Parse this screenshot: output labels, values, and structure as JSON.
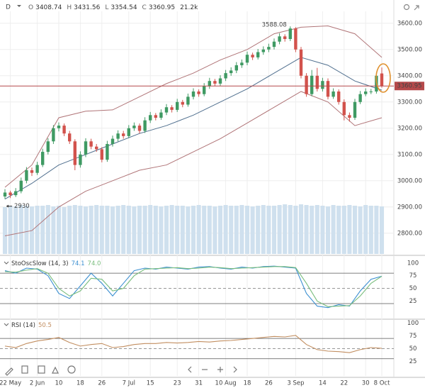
{
  "chart_data": [
    {
      "type": "candlestick",
      "header": {
        "interval": "D",
        "labels": [
          "O",
          "H",
          "L",
          "C"
        ],
        "values": [
          3408.74,
          3431.56,
          3354.54,
          3360.95
        ],
        "volume": {
          "value": 21200,
          "label": "21.2k"
        }
      },
      "categories": [
        null,
        "22 May",
        null,
        null,
        null,
        null,
        "2 Jun",
        null,
        null,
        null,
        "10",
        null,
        null,
        null,
        "18",
        null,
        null,
        null,
        "26",
        null,
        null,
        null,
        null,
        "7 Jul",
        null,
        null,
        null,
        "15",
        null,
        null,
        null,
        null,
        "23",
        null,
        null,
        null,
        "31",
        null,
        null,
        null,
        null,
        "10 Aug",
        null,
        null,
        null,
        "18",
        null,
        null,
        null,
        "26",
        null,
        null,
        null,
        null,
        "3 Sep",
        null,
        null,
        null,
        null,
        "14",
        null,
        null,
        null,
        "22",
        null,
        null,
        null,
        "30",
        null,
        null,
        "8 Oct"
      ],
      "open": [
        2940,
        2955,
        2945,
        2960,
        3000,
        3040,
        3030,
        3060,
        3110,
        3150,
        3200,
        3210,
        3180,
        3150,
        3060,
        3100,
        3150,
        3130,
        3120,
        3080,
        3140,
        3160,
        3180,
        3170,
        3200,
        3210,
        3190,
        3230,
        3250,
        3240,
        3260,
        3280,
        3270,
        3300,
        3290,
        3320,
        3340,
        3330,
        3360,
        3380,
        3370,
        3390,
        3410,
        3420,
        3440,
        3450,
        3480,
        3470,
        3490,
        3500,
        3510,
        3530,
        3550,
        3540,
        3580,
        3500,
        3400,
        3330,
        3400,
        3350,
        3380,
        3320,
        3340,
        3300,
        3250,
        3240,
        3300,
        3330,
        3340,
        3340,
        3408.74
      ],
      "high": [
        2968,
        2962,
        2972,
        3012,
        3052,
        3050,
        3072,
        3122,
        3162,
        3212,
        3222,
        3218,
        3190,
        3158,
        3112,
        3162,
        3160,
        3140,
        3128,
        3152,
        3172,
        3192,
        3190,
        3212,
        3222,
        3218,
        3242,
        3262,
        3258,
        3272,
        3292,
        3288,
        3312,
        3308,
        3332,
        3352,
        3348,
        3372,
        3392,
        3388,
        3402,
        3422,
        3432,
        3452,
        3462,
        3492,
        3488,
        3502,
        3512,
        3522,
        3542,
        3562,
        3558,
        3588.08,
        3585,
        3510,
        3410,
        3422,
        3430,
        3392,
        3390,
        3352,
        3348,
        3310,
        3260,
        3312,
        3342,
        3352,
        3350,
        3412,
        3431.56
      ],
      "low": [
        2930,
        2933.89,
        2938,
        2952,
        2990,
        3018,
        3022,
        3052,
        3100,
        3140,
        3188,
        3170,
        3140,
        3040,
        3050,
        3090,
        3120,
        3110,
        3070,
        3072,
        3130,
        3150,
        3160,
        3162,
        3190,
        3180,
        3182,
        3220,
        3230,
        3232,
        3250,
        3260,
        3262,
        3280,
        3282,
        3310,
        3320,
        3322,
        3350,
        3360,
        3362,
        3380,
        3400,
        3410,
        3430,
        3440,
        3460,
        3462,
        3480,
        3490,
        3500,
        3520,
        3530,
        3532,
        3490,
        3390,
        3320,
        3322,
        3340,
        3340,
        3310,
        3312,
        3290,
        3230,
        3225,
        3232,
        3292,
        3322,
        3330,
        3332,
        3354.54
      ],
      "close": [
        2955,
        2945,
        2960,
        3000,
        3040,
        3030,
        3060,
        3110,
        3150,
        3200,
        3210,
        3180,
        3150,
        3060,
        3100,
        3150,
        3130,
        3120,
        3080,
        3140,
        3160,
        3180,
        3170,
        3200,
        3210,
        3190,
        3230,
        3250,
        3240,
        3260,
        3280,
        3270,
        3300,
        3290,
        3320,
        3340,
        3330,
        3360,
        3380,
        3370,
        3390,
        3410,
        3420,
        3440,
        3450,
        3480,
        3470,
        3490,
        3500,
        3510,
        3530,
        3550,
        3540,
        3580,
        3500,
        3400,
        3330,
        3400,
        3350,
        3380,
        3320,
        3340,
        3300,
        3250,
        3240,
        3300,
        3330,
        3340,
        3340,
        3400,
        3360.95
      ],
      "colors": {
        "up": "#3f9a63",
        "down": "#d2524c",
        "price_line": "#b5494a"
      },
      "bands": {
        "x": [
          0,
          5,
          10,
          15,
          20,
          25,
          30,
          35,
          40,
          45,
          50,
          55,
          60,
          65,
          70
        ],
        "series": [
          {
            "color": "#b07477",
            "values": [
              2975,
              3060,
              3240,
              3265,
              3270,
              3320,
              3370,
              3410,
              3460,
              3500,
              3560,
              3585,
              3590,
              3560,
              3470
            ]
          },
          {
            "color": "#51708f",
            "values": [
              2930,
              2990,
              3060,
              3100,
              3140,
              3180,
              3210,
              3250,
              3300,
              3350,
              3410,
              3470,
              3440,
              3380,
              3345
            ]
          },
          {
            "color": "#b07477",
            "values": [
              2790,
              2810,
              2900,
              2960,
              3000,
              3040,
              3060,
              3110,
              3160,
              3220,
              3280,
              3340,
              3300,
              3210,
              3240
            ]
          }
        ]
      },
      "volume": {
        "color": "#cfe0ee",
        "y2lim": [
          0,
          350
        ],
        "values": [
          68,
          70,
          69,
          71,
          70,
          69,
          70,
          70,
          71,
          69,
          70,
          68,
          70,
          71,
          70,
          69,
          70,
          71,
          70,
          70,
          69,
          70,
          71,
          70,
          69,
          70,
          70,
          71,
          70,
          69,
          70,
          71,
          70,
          70,
          69,
          70,
          71,
          70,
          70,
          69,
          70,
          71,
          70,
          70,
          71,
          70,
          69,
          70,
          71,
          70,
          70,
          71,
          72,
          71,
          70,
          72,
          71,
          70,
          71,
          70,
          69,
          71,
          70,
          70,
          71,
          70,
          69,
          71,
          70,
          70,
          69
        ]
      },
      "ylim": [
        2721,
        3640
      ],
      "yticks": [
        {
          "value": 2800,
          "label": "2800.00"
        },
        {
          "value": 2900,
          "label": "2900.00"
        },
        {
          "value": 3000,
          "label": "3000.00"
        },
        {
          "value": 3100,
          "label": "3100.00"
        },
        {
          "value": 3200,
          "label": "3200.00"
        },
        {
          "value": 3300,
          "label": "3300.00"
        },
        {
          "value": 3400,
          "label": "3400.00"
        },
        {
          "value": 3500,
          "label": "3500.00"
        },
        {
          "value": 3600,
          "label": "3600.00"
        }
      ],
      "grid": true
    },
    {
      "type": "line",
      "title": "StoOscSlow (14, 3)",
      "x": [
        0,
        2,
        4,
        6,
        8,
        10,
        12,
        14,
        16,
        18,
        20,
        22,
        24,
        26,
        28,
        30,
        32,
        34,
        36,
        38,
        40,
        42,
        44,
        46,
        48,
        50,
        52,
        54,
        56,
        58,
        60,
        62,
        64,
        66,
        68,
        70
      ],
      "series": [
        {
          "color": "#3b8fd1",
          "readout": 74.1,
          "values": [
            85,
            80,
            90,
            88,
            75,
            40,
            30,
            55,
            80,
            60,
            35,
            60,
            85,
            90,
            88,
            92,
            90,
            88,
            92,
            93,
            90,
            88,
            92,
            90,
            93,
            94,
            92,
            90,
            40,
            15,
            12,
            18,
            15,
            45,
            68,
            74.1
          ]
        },
        {
          "color": "#79bd7d",
          "readout": {
            "value": 74,
            "label": "74.0"
          },
          "values": [
            83,
            82,
            86,
            89,
            80,
            50,
            35,
            45,
            70,
            68,
            45,
            50,
            75,
            88,
            89,
            90,
            91,
            89,
            90,
            92,
            91,
            89,
            90,
            91,
            92,
            93,
            93,
            91,
            60,
            25,
            14,
            15,
            16,
            35,
            60,
            74
          ]
        }
      ],
      "levels": [
        20,
        50,
        80
      ],
      "ylim": [
        -8,
        111
      ],
      "yticks": [
        25,
        50,
        75,
        100
      ]
    },
    {
      "type": "line",
      "title": "RSI (14)",
      "x": [
        0,
        2,
        4,
        6,
        8,
        10,
        12,
        14,
        16,
        18,
        20,
        22,
        24,
        26,
        28,
        30,
        32,
        34,
        36,
        38,
        40,
        42,
        44,
        46,
        48,
        50,
        52,
        54,
        56,
        58,
        60,
        62,
        64,
        66,
        68,
        70
      ],
      "series": [
        {
          "color": "#c28e60",
          "readout": 50.5,
          "values": [
            55,
            52,
            60,
            65,
            68,
            72,
            62,
            55,
            58,
            60,
            52,
            54,
            58,
            60,
            60,
            62,
            61,
            62,
            64,
            63,
            65,
            66,
            68,
            70,
            72,
            74,
            73,
            76,
            58,
            48,
            45,
            44,
            42,
            48,
            52,
            50.5
          ]
        }
      ],
      "levels": [
        30,
        50,
        70
      ],
      "ylim": [
        -4,
        108
      ],
      "yticks": [
        25,
        50,
        75,
        100
      ]
    }
  ]
}
